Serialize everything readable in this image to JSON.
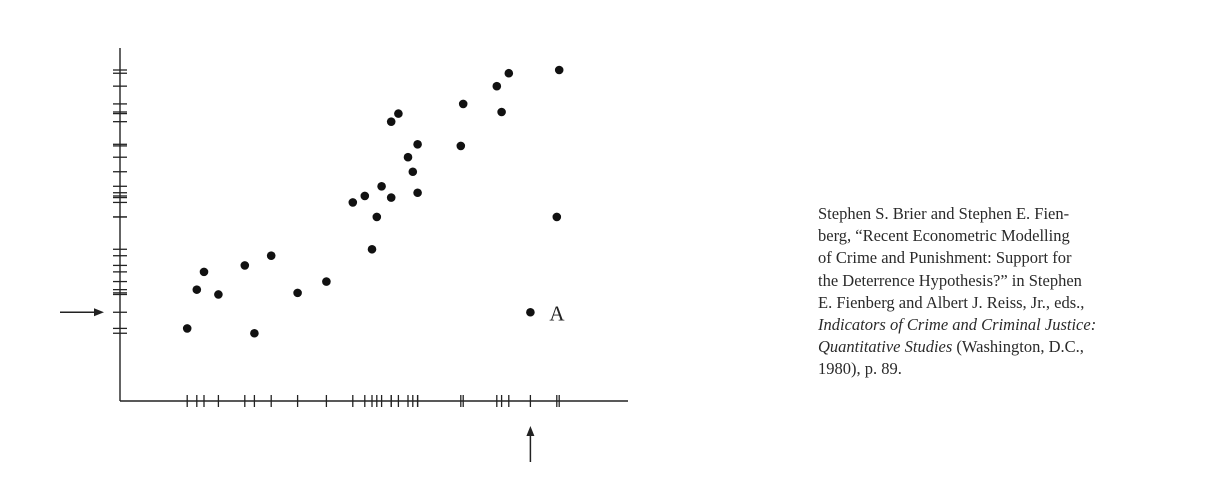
{
  "chart_data": {
    "type": "scatter",
    "title": "",
    "xlabel": "",
    "ylabel": "",
    "axis_style": "rug-ticks at each data value on both axes (no numeric labels)",
    "xlim": [
      0,
      100
    ],
    "ylim": [
      0,
      100
    ],
    "points": [
      {
        "x": 14.0,
        "y": 20.0
      },
      {
        "x": 16.0,
        "y": 32.0
      },
      {
        "x": 17.5,
        "y": 37.5
      },
      {
        "x": 20.5,
        "y": 30.5
      },
      {
        "x": 26.0,
        "y": 39.5
      },
      {
        "x": 28.0,
        "y": 18.5
      },
      {
        "x": 31.5,
        "y": 42.5
      },
      {
        "x": 37.0,
        "y": 31.0
      },
      {
        "x": 43.0,
        "y": 34.5
      },
      {
        "x": 48.5,
        "y": 59.0
      },
      {
        "x": 51.0,
        "y": 61.0
      },
      {
        "x": 52.5,
        "y": 44.5
      },
      {
        "x": 53.5,
        "y": 54.5
      },
      {
        "x": 54.5,
        "y": 64.0
      },
      {
        "x": 56.5,
        "y": 60.5
      },
      {
        "x": 56.5,
        "y": 84.0
      },
      {
        "x": 58.0,
        "y": 86.5
      },
      {
        "x": 60.0,
        "y": 73.0
      },
      {
        "x": 61.0,
        "y": 68.5
      },
      {
        "x": 62.0,
        "y": 77.0
      },
      {
        "x": 62.0,
        "y": 62.0
      },
      {
        "x": 71.0,
        "y": 76.5
      },
      {
        "x": 71.5,
        "y": 89.5
      },
      {
        "x": 78.5,
        "y": 95.0
      },
      {
        "x": 79.5,
        "y": 87.0
      },
      {
        "x": 81.0,
        "y": 99.0
      },
      {
        "x": 85.5,
        "y": 25.0
      },
      {
        "x": 91.0,
        "y": 54.5
      },
      {
        "x": 91.5,
        "y": 100.0
      }
    ],
    "annotations": [
      {
        "text": "A",
        "x": 85.5,
        "y": 25.0,
        "note": "outlier point labelled A; arrows on both axes point to its coordinates"
      }
    ]
  },
  "citation": {
    "line1": "Stephen S. Brier and Stephen E. Fien-",
    "line2": "berg, “Recent Econometric Modelling",
    "line3": "of Crime and Punishment: Support for",
    "line4": "the Deterrence Hypothesis?” in Stephen",
    "line5": "E. Fienberg and Albert J. Reiss, Jr., eds.,",
    "line6_italic": "Indicators of Crime and Criminal Justice:",
    "line7_italic": "Quantitative Studies",
    "line7_rest": " (Washington, D.C.,",
    "line8": "1980), p. 89."
  }
}
